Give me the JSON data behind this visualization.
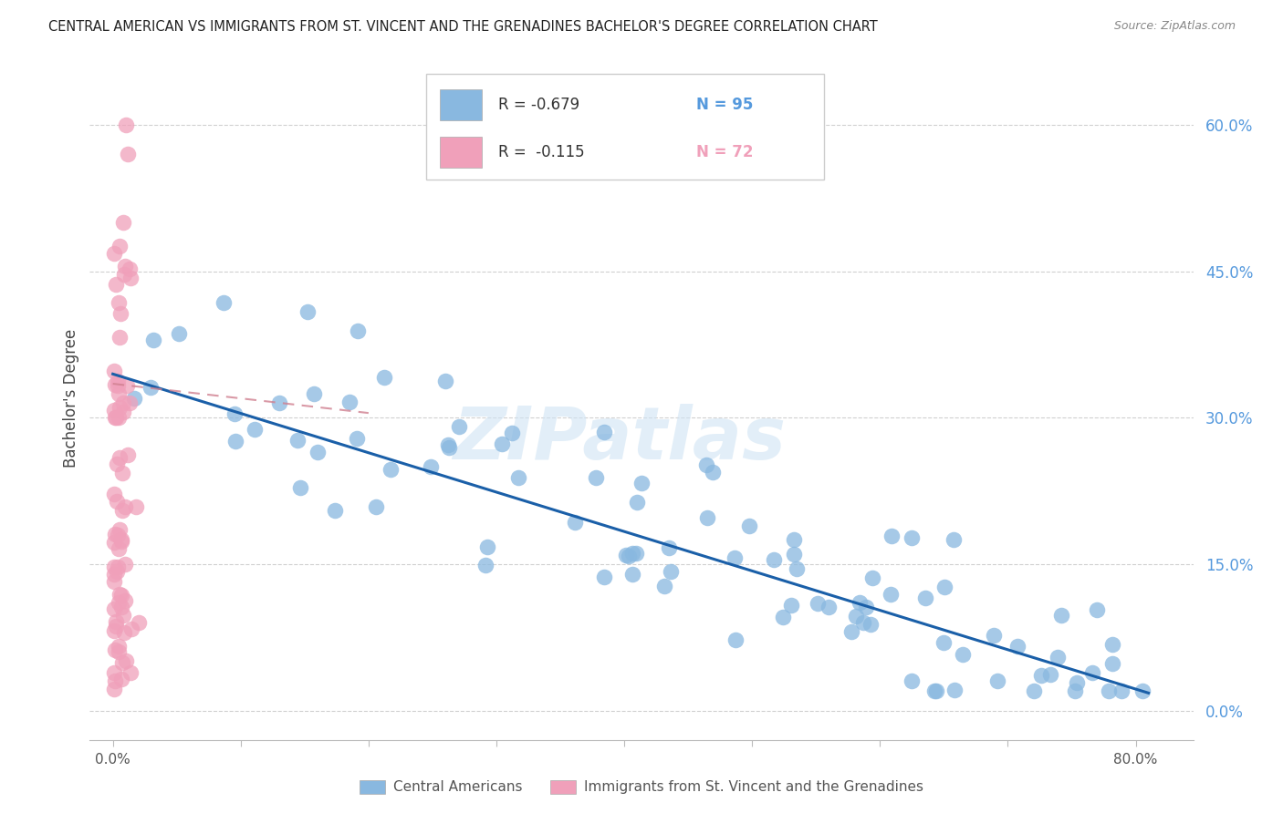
{
  "title": "CENTRAL AMERICAN VS IMMIGRANTS FROM ST. VINCENT AND THE GRENADINES BACHELOR'S DEGREE CORRELATION CHART",
  "source": "Source: ZipAtlas.com",
  "ylabel": "Bachelor's Degree",
  "blue_color": "#89b8e0",
  "pink_color": "#f0a0ba",
  "blue_line_color": "#1a5fa8",
  "pink_line_color": "#d08090",
  "grid_color": "#d0d0d0",
  "watermark": "ZIPatlas",
  "ytick_positions": [
    0.0,
    0.15,
    0.3,
    0.45,
    0.6
  ],
  "ytick_labels": [
    "0.0%",
    "15.0%",
    "30.0%",
    "45.0%",
    "60.0%"
  ],
  "xtick_positions": [
    0.0,
    0.1,
    0.2,
    0.3,
    0.4,
    0.5,
    0.6,
    0.7,
    0.8
  ],
  "xlim": [
    -0.018,
    0.845
  ],
  "ylim": [
    -0.03,
    0.67
  ],
  "blue_line_x0": 0.0,
  "blue_line_y0": 0.345,
  "blue_line_x1": 0.81,
  "blue_line_y1": 0.018,
  "pink_line_x0": 0.0,
  "pink_line_y0": 0.335,
  "pink_line_x1": 0.2,
  "pink_line_y1": 0.305,
  "blue_legend_label": "Central Americans",
  "pink_legend_label": "Immigrants from St. Vincent and the Grenadines",
  "legend_r1": "R = -0.679",
  "legend_n1": "N = 95",
  "legend_r2": "R =  -0.115",
  "legend_n2": "N = 72"
}
